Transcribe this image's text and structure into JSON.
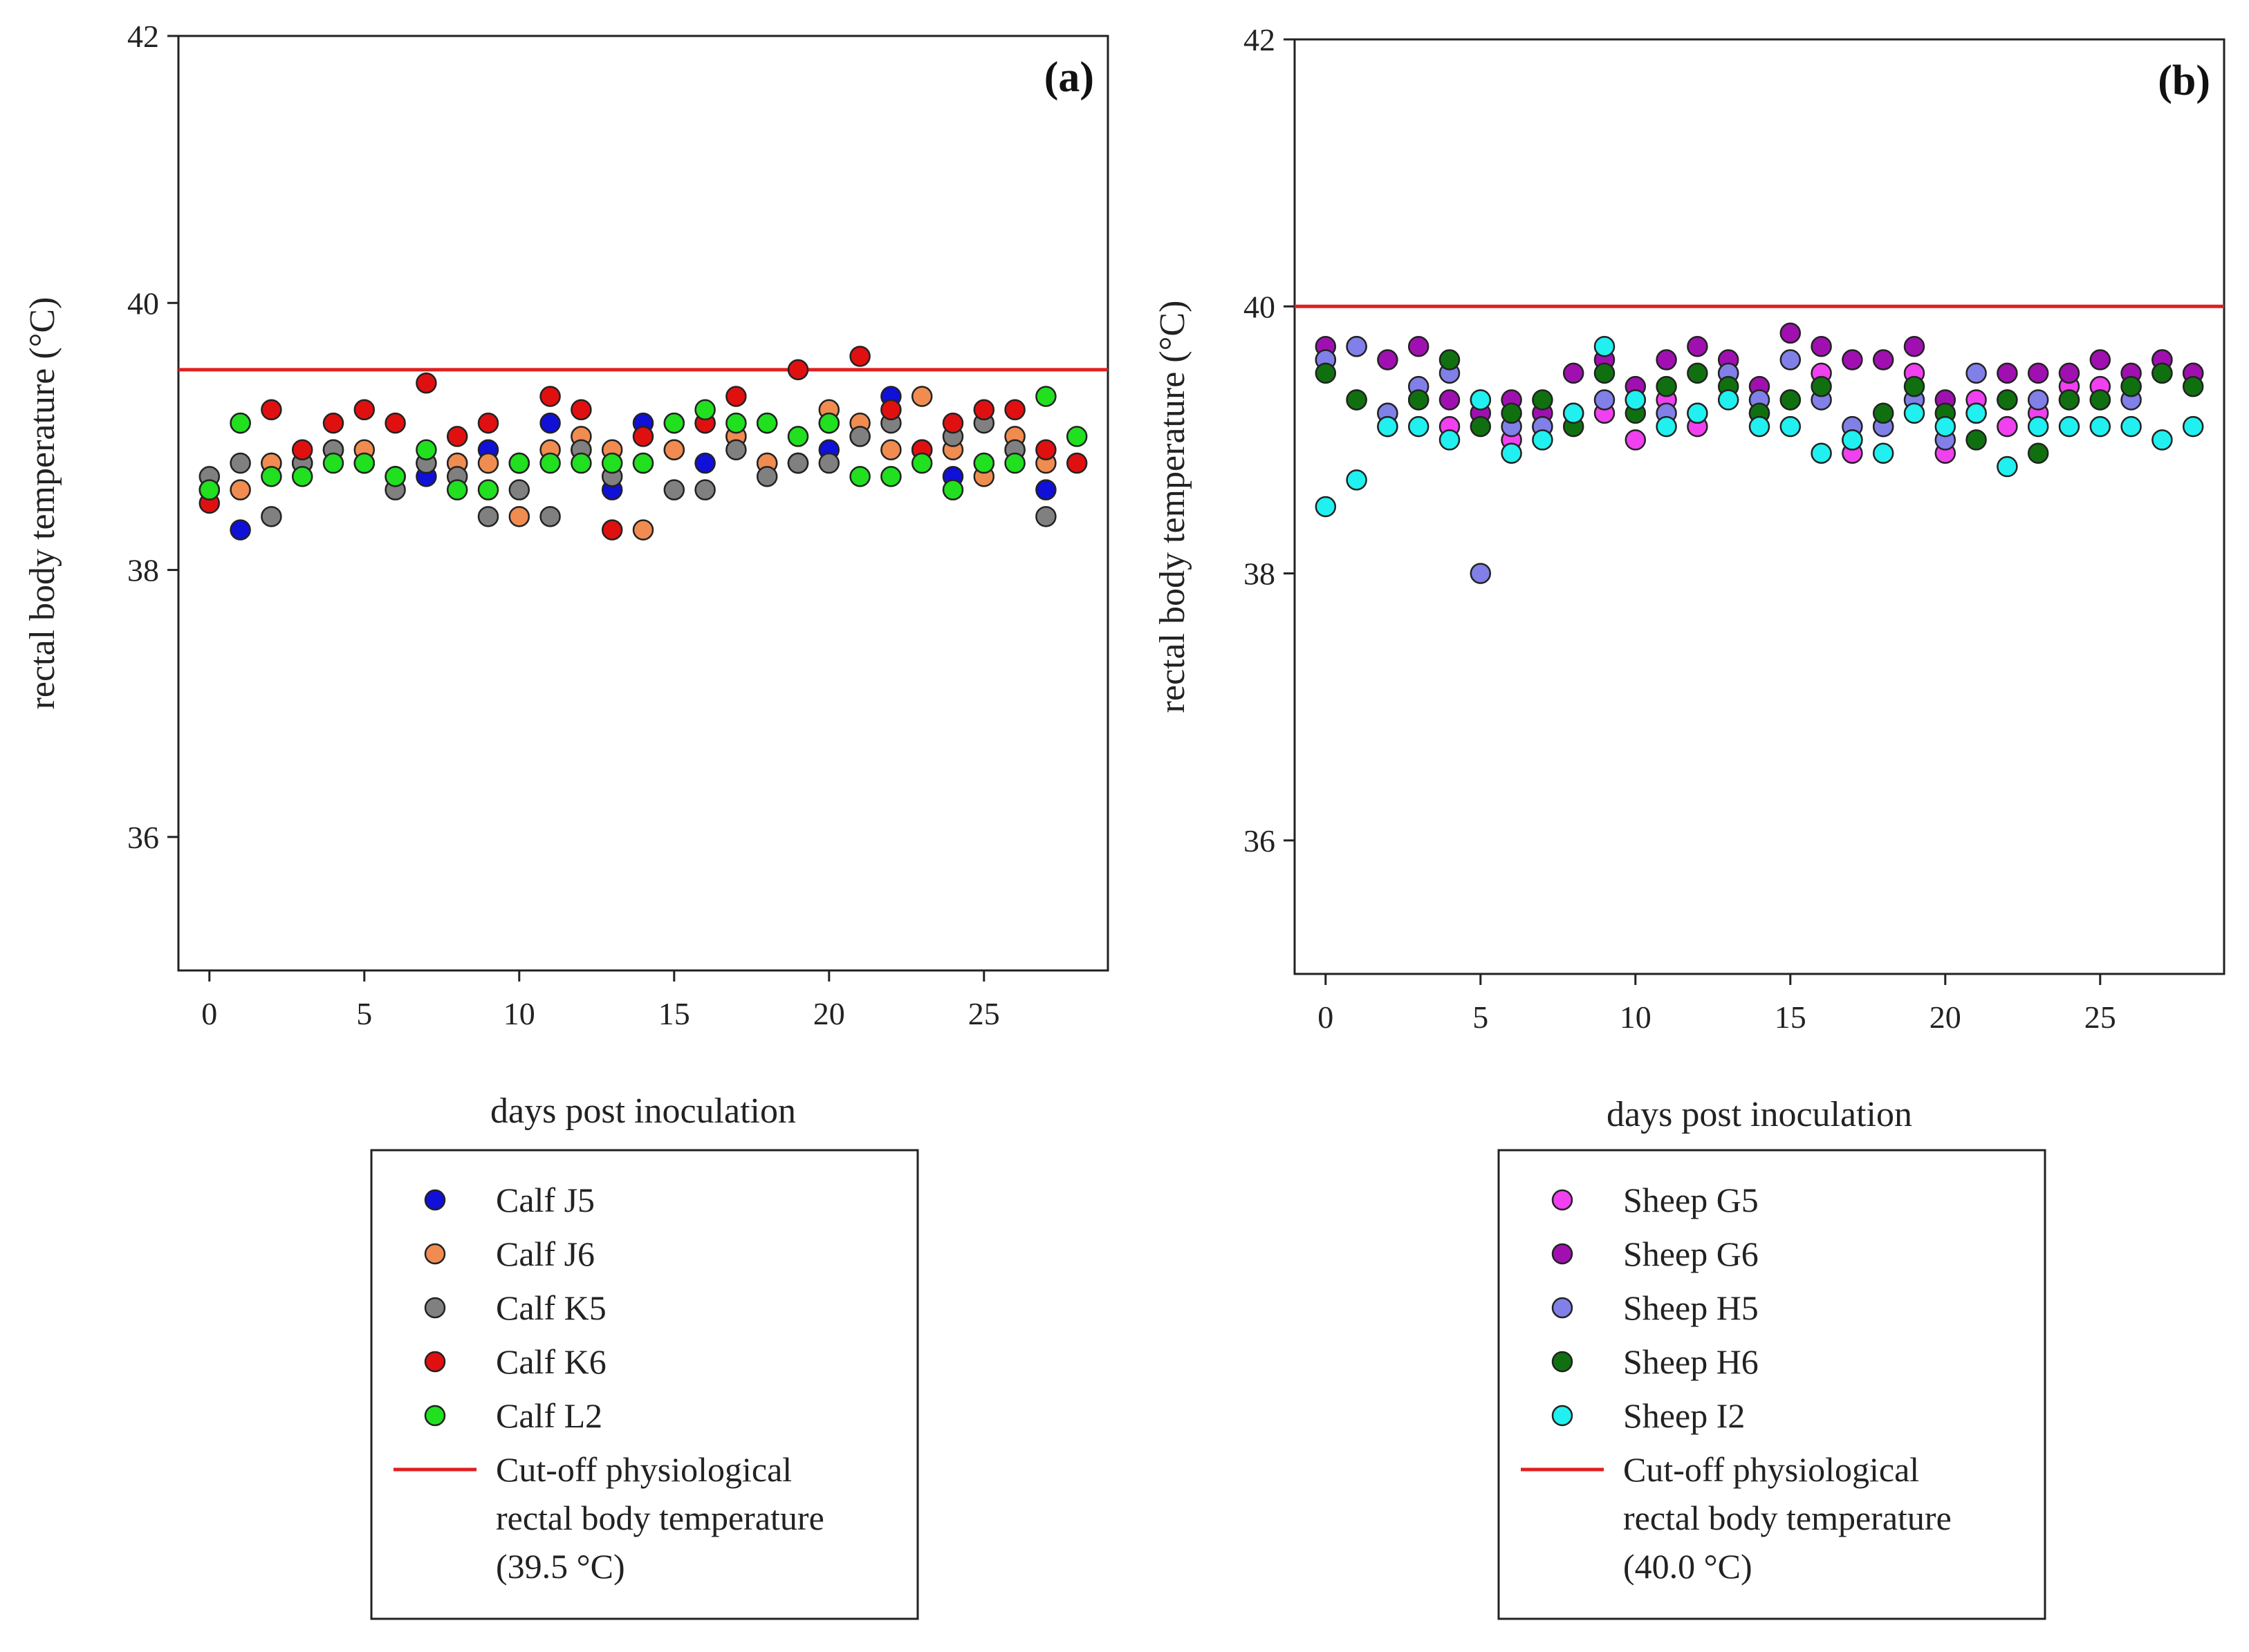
{
  "chart_data": [
    {
      "type": "scatter",
      "panel_label": "(a)",
      "xlabel": "days post inoculation",
      "ylabel": "rectal body temperature (°C)",
      "xlim": [
        -1,
        29
      ],
      "ylim": [
        35,
        42
      ],
      "xticks": [
        0,
        5,
        10,
        15,
        20,
        25
      ],
      "yticks": [
        36,
        38,
        40,
        42
      ],
      "grid": false,
      "legend_position": "below",
      "cutoff": {
        "value": 39.5,
        "color": "#e02020",
        "label_lines": [
          "Cut-off physiological",
          "rectal body temperature",
          "(39.5 °C)"
        ]
      },
      "series": [
        {
          "name": "Calf J5",
          "color": "#1010d8",
          "x": [
            0,
            1,
            2,
            3,
            4,
            5,
            6,
            7,
            8,
            9,
            10,
            11,
            12,
            13,
            14,
            15,
            16,
            17,
            18,
            19,
            20,
            21,
            22,
            23,
            24,
            25,
            26,
            27
          ],
          "values": [
            38.6,
            38.3,
            38.8,
            38.8,
            38.9,
            38.8,
            38.7,
            38.7,
            38.8,
            38.9,
            38.8,
            39.1,
            38.9,
            38.6,
            39.1,
            38.9,
            38.8,
            39.0,
            38.8,
            38.8,
            38.9,
            39.0,
            39.3,
            38.9,
            38.7,
            38.8,
            38.9,
            38.6
          ]
        },
        {
          "name": "Calf J6",
          "color": "#f08c50",
          "x": [
            0,
            1,
            2,
            3,
            4,
            5,
            6,
            7,
            8,
            9,
            10,
            11,
            12,
            13,
            14,
            15,
            16,
            17,
            18,
            19,
            20,
            21,
            22,
            23,
            24,
            25,
            26,
            27
          ],
          "values": [
            38.6,
            38.6,
            38.8,
            38.8,
            38.9,
            38.9,
            38.7,
            38.8,
            38.8,
            38.8,
            38.4,
            38.9,
            39.0,
            38.9,
            38.3,
            38.9,
            39.1,
            39.0,
            38.8,
            38.8,
            39.2,
            39.1,
            38.9,
            39.3,
            38.9,
            38.7,
            39.0,
            38.8
          ]
        },
        {
          "name": "Calf K5",
          "color": "#808080",
          "x": [
            0,
            1,
            2,
            3,
            4,
            5,
            6,
            7,
            8,
            9,
            10,
            11,
            12,
            13,
            14,
            15,
            16,
            17,
            18,
            19,
            20,
            21,
            22,
            23,
            24,
            25,
            26,
            27
          ],
          "values": [
            38.7,
            38.8,
            38.4,
            38.8,
            38.9,
            38.8,
            38.6,
            38.8,
            38.7,
            38.4,
            38.6,
            38.4,
            38.9,
            38.7,
            38.8,
            38.6,
            38.6,
            38.9,
            38.7,
            38.8,
            38.8,
            39.0,
            39.1,
            38.9,
            39.0,
            39.1,
            38.9,
            38.4
          ]
        },
        {
          "name": "Calf K6",
          "color": "#e01010",
          "x": [
            0,
            1,
            2,
            3,
            4,
            5,
            6,
            7,
            8,
            9,
            10,
            11,
            12,
            13,
            14,
            15,
            16,
            17,
            18,
            19,
            20,
            21,
            22,
            23,
            24,
            25,
            26,
            27,
            28
          ],
          "values": [
            38.5,
            39.1,
            39.2,
            38.9,
            39.1,
            39.2,
            39.1,
            39.4,
            39.0,
            39.1,
            38.8,
            39.3,
            39.2,
            38.3,
            39.0,
            39.1,
            39.1,
            39.3,
            39.1,
            39.5,
            39.1,
            39.6,
            39.2,
            38.9,
            39.1,
            39.2,
            39.2,
            38.9,
            38.8
          ]
        },
        {
          "name": "Calf L2",
          "color": "#20e020",
          "x": [
            0,
            1,
            2,
            3,
            4,
            5,
            6,
            7,
            8,
            9,
            10,
            11,
            12,
            13,
            14,
            15,
            16,
            17,
            18,
            19,
            20,
            21,
            22,
            23,
            24,
            25,
            26,
            27,
            28
          ],
          "values": [
            38.6,
            39.1,
            38.7,
            38.7,
            38.8,
            38.8,
            38.7,
            38.9,
            38.6,
            38.6,
            38.8,
            38.8,
            38.8,
            38.8,
            38.8,
            39.1,
            39.2,
            39.1,
            39.1,
            39.0,
            39.1,
            38.7,
            38.7,
            38.8,
            38.6,
            38.8,
            38.8,
            39.3,
            39.0
          ]
        }
      ]
    },
    {
      "type": "scatter",
      "panel_label": "(b)",
      "xlabel": "days post inoculation",
      "ylabel": "rectal body temperature (°C)",
      "xlim": [
        -1,
        29
      ],
      "ylim": [
        35,
        42
      ],
      "xticks": [
        0,
        5,
        10,
        15,
        20,
        25
      ],
      "yticks": [
        36,
        38,
        40,
        42
      ],
      "grid": false,
      "legend_position": "below",
      "cutoff": {
        "value": 40.0,
        "color": "#e02020",
        "label_lines": [
          "Cut-off physiological",
          "rectal body temperature",
          "(40.0 °C)"
        ]
      },
      "series": [
        {
          "name": "Sheep G5",
          "color": "#f040f0",
          "x": [
            0,
            1,
            2,
            3,
            4,
            5,
            6,
            7,
            8,
            9,
            10,
            11,
            12,
            13,
            14,
            15,
            16,
            17,
            18,
            19,
            20,
            21,
            22,
            23,
            24,
            25,
            26,
            27,
            28
          ],
          "values": [
            39.6,
            39.7,
            39.2,
            39.3,
            39.1,
            39.3,
            39.0,
            39.1,
            39.2,
            39.2,
            39.0,
            39.3,
            39.1,
            39.5,
            39.2,
            39.3,
            39.5,
            38.9,
            39.1,
            39.5,
            38.9,
            39.3,
            39.1,
            39.2,
            39.4,
            39.4,
            39.4,
            39.6,
            39.5
          ]
        },
        {
          "name": "Sheep G6",
          "color": "#a010b0",
          "x": [
            0,
            1,
            2,
            3,
            4,
            5,
            6,
            7,
            8,
            9,
            10,
            11,
            12,
            13,
            14,
            15,
            16,
            17,
            18,
            19,
            20,
            21,
            22,
            23,
            24,
            25,
            26,
            27,
            28
          ],
          "values": [
            39.7,
            39.3,
            39.6,
            39.7,
            39.3,
            39.2,
            39.3,
            39.2,
            39.5,
            39.6,
            39.4,
            39.6,
            39.7,
            39.6,
            39.4,
            39.8,
            39.7,
            39.6,
            39.6,
            39.7,
            39.3,
            39.2,
            39.5,
            39.5,
            39.5,
            39.6,
            39.5,
            39.6,
            39.5
          ]
        },
        {
          "name": "Sheep H5",
          "color": "#8080e8",
          "x": [
            0,
            1,
            2,
            3,
            4,
            5,
            6,
            7,
            8,
            9,
            10,
            11,
            12,
            13,
            14,
            15,
            16,
            17,
            18,
            19,
            20,
            21,
            22,
            23,
            24,
            25,
            26,
            27
          ],
          "values": [
            39.6,
            39.7,
            39.2,
            39.4,
            39.5,
            38.0,
            39.1,
            39.1,
            39.2,
            39.3,
            39.3,
            39.2,
            39.2,
            39.5,
            39.3,
            39.6,
            39.3,
            39.1,
            39.1,
            39.3,
            39.0,
            39.5,
            39.3,
            39.3,
            39.3,
            39.3,
            39.3,
            39.5
          ]
        },
        {
          "name": "Sheep H6",
          "color": "#107010",
          "x": [
            0,
            1,
            2,
            3,
            4,
            5,
            6,
            7,
            8,
            9,
            10,
            11,
            12,
            13,
            14,
            15,
            16,
            17,
            18,
            19,
            20,
            21,
            22,
            23,
            24,
            25,
            26,
            27,
            28
          ],
          "values": [
            39.5,
            39.3,
            39.1,
            39.3,
            39.6,
            39.1,
            39.2,
            39.3,
            39.1,
            39.5,
            39.2,
            39.4,
            39.5,
            39.4,
            39.2,
            39.3,
            39.4,
            39.0,
            39.2,
            39.4,
            39.2,
            39.0,
            39.3,
            38.9,
            39.3,
            39.3,
            39.4,
            39.5,
            39.4
          ]
        },
        {
          "name": "Sheep I2",
          "color": "#20f0f0",
          "x": [
            0,
            1,
            2,
            3,
            4,
            5,
            6,
            7,
            8,
            9,
            10,
            11,
            12,
            13,
            14,
            15,
            16,
            17,
            18,
            19,
            20,
            21,
            22,
            23,
            24,
            25,
            26,
            27,
            28
          ],
          "values": [
            38.5,
            38.7,
            39.1,
            39.1,
            39.0,
            39.3,
            38.9,
            39.0,
            39.2,
            39.7,
            39.3,
            39.1,
            39.2,
            39.3,
            39.1,
            39.1,
            38.9,
            39.0,
            38.9,
            39.2,
            39.1,
            39.2,
            38.8,
            39.1,
            39.1,
            39.1,
            39.1,
            39.0,
            39.1
          ]
        }
      ]
    }
  ]
}
